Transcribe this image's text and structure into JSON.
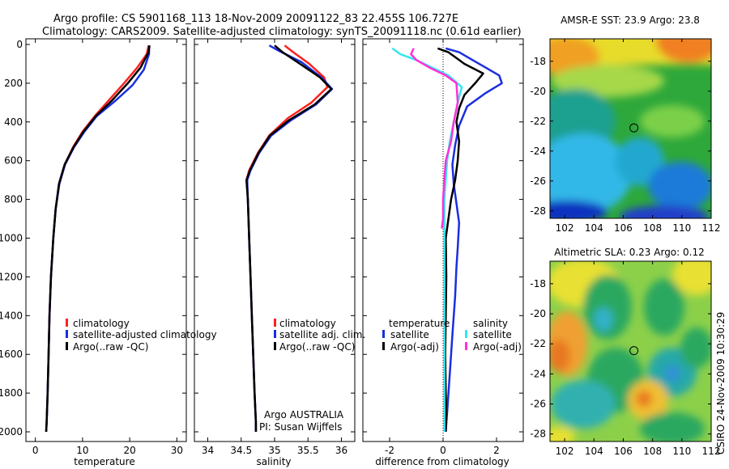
{
  "title": {
    "line1": "Argo profile: CS 5901168_113 18-Nov-2009 20091122_83 22.455S 106.727E",
    "line2": "Climatology: CARS2009. Satellite-adjusted climatology: synTS_20091118.nc (0.61d earlier)"
  },
  "footer_text": "CSIRO 24-Nov-2009 10:30:29",
  "colors": {
    "climatology": "#ff2020",
    "satellite": "#1a2ee0",
    "argo": "#000000",
    "argo_sal": "#ff30d8",
    "satellite_sal": "#30e8f0",
    "marker": "#000000"
  },
  "chart_data": [
    {
      "type": "line",
      "panel": "temperature",
      "xlabel": "temperature",
      "xlim": [
        -2,
        32
      ],
      "xticks": [
        0,
        10,
        20,
        30
      ],
      "ylim": [
        0,
        2050
      ],
      "yticks": [
        0,
        200,
        400,
        600,
        800,
        1000,
        1200,
        1400,
        1600,
        1800,
        2000
      ],
      "y_reversed": true,
      "legend": [
        "climatology",
        "satellite-adjusted climatology",
        "Argo(..raw -QC)"
      ],
      "series": [
        {
          "name": "climatology",
          "color_key": "climatology",
          "x": [
            24.0,
            23.6,
            21.6,
            18.8,
            15.5,
            12.6,
            10.0,
            8.0,
            6.2,
            5.0,
            4.3,
            3.8,
            3.3,
            3.0,
            2.8,
            2.6,
            2.4,
            2.3
          ],
          "y": [
            5,
            50,
            120,
            200,
            290,
            370,
            450,
            530,
            620,
            720,
            850,
            1000,
            1200,
            1400,
            1600,
            1800,
            1950,
            2000
          ]
        },
        {
          "name": "satellite-adjusted climatology",
          "color_key": "satellite",
          "x": [
            24.1,
            24.1,
            23.0,
            20.6,
            17.0,
            13.0,
            10.4,
            8.2,
            6.3,
            5.1,
            4.3,
            3.8,
            3.3,
            3.0,
            2.8,
            2.6,
            2.4,
            2.3
          ],
          "y": [
            5,
            50,
            130,
            210,
            290,
            370,
            450,
            530,
            620,
            720,
            850,
            1000,
            1200,
            1400,
            1600,
            1800,
            1950,
            2000
          ]
        },
        {
          "name": "Argo(..raw -QC)",
          "color_key": "argo",
          "x": [
            24.2,
            24.0,
            22.3,
            19.6,
            16.2,
            12.8,
            10.2,
            8.1,
            6.2,
            5.0,
            4.3,
            3.8,
            3.3,
            3.0,
            2.8,
            2.6,
            2.4,
            2.3
          ],
          "y": [
            5,
            40,
            120,
            200,
            290,
            370,
            450,
            530,
            620,
            720,
            850,
            1000,
            1200,
            1400,
            1600,
            1800,
            1950,
            2000
          ]
        }
      ]
    },
    {
      "type": "line",
      "panel": "salinity",
      "xlabel": "salinity",
      "xlim": [
        33.8,
        36.2
      ],
      "xticks": [
        34,
        34.5,
        35,
        35.5,
        36
      ],
      "ylim": [
        0,
        2050
      ],
      "y_reversed": true,
      "legend": [
        "climatology",
        "satellite adj. clim.",
        "Argo(..raw -QC)"
      ],
      "annotation": [
        "Argo AUSTRALIA",
        "PI: Susan Wijffels"
      ],
      "series": [
        {
          "name": "climatology",
          "color_key": "climatology",
          "x": [
            35.15,
            35.28,
            35.52,
            35.74,
            35.79,
            35.55,
            35.2,
            34.92,
            34.75,
            34.62,
            34.58,
            34.6,
            34.62,
            34.64,
            34.66,
            34.68,
            34.7,
            34.72,
            34.72
          ],
          "y": [
            5,
            40,
            100,
            170,
            220,
            300,
            380,
            470,
            560,
            650,
            700,
            800,
            1000,
            1200,
            1400,
            1600,
            1800,
            1950,
            2000
          ]
        },
        {
          "name": "satellite adj. clim.",
          "color_key": "satellite",
          "x": [
            34.92,
            35.05,
            35.4,
            35.7,
            35.86,
            35.62,
            35.25,
            34.95,
            34.77,
            34.64,
            34.59,
            34.6,
            34.62,
            34.64,
            34.66,
            34.68,
            34.7,
            34.72,
            34.72
          ],
          "y": [
            5,
            30,
            90,
            170,
            230,
            310,
            390,
            470,
            560,
            650,
            700,
            800,
            1000,
            1200,
            1400,
            1600,
            1800,
            1950,
            2000
          ]
        },
        {
          "name": "Argo(..raw -QC)",
          "color_key": "argo",
          "x": [
            35.0,
            35.12,
            35.38,
            35.68,
            35.85,
            35.6,
            35.22,
            34.93,
            34.76,
            34.63,
            34.58,
            34.6,
            34.62,
            34.64,
            34.66,
            34.68,
            34.7,
            34.72,
            34.72
          ],
          "y": [
            5,
            40,
            100,
            170,
            230,
            310,
            390,
            470,
            560,
            650,
            700,
            800,
            1000,
            1200,
            1400,
            1600,
            1800,
            1950,
            2000
          ]
        }
      ]
    },
    {
      "type": "line",
      "panel": "difference",
      "xlabel": "difference from climatology",
      "xlim": [
        -3.0,
        3.0
      ],
      "xticks": [
        -2,
        0,
        2
      ],
      "ylim": [
        0,
        2050
      ],
      "y_reversed": true,
      "legend_temperature_title": "temperature",
      "legend_temperature": [
        "satellite",
        "Argo(-adj)"
      ],
      "legend_salinity_title": "salinity",
      "legend_salinity": [
        "satellite",
        "Argo(-adj)"
      ],
      "series": [
        {
          "name": "temperature satellite",
          "color_key": "satellite",
          "x": [
            0.1,
            0.6,
            1.1,
            1.6,
            2.1,
            2.2,
            1.6,
            0.9,
            0.6,
            0.45,
            0.35,
            0.4,
            0.5,
            0.6,
            0.55,
            0.5,
            0.45,
            0.35,
            0.25,
            0.15,
            0.1
          ],
          "y": [
            20,
            40,
            80,
            120,
            160,
            200,
            250,
            320,
            420,
            520,
            620,
            720,
            820,
            920,
            1050,
            1150,
            1300,
            1500,
            1700,
            1900,
            2000
          ]
        },
        {
          "name": "temperature Argo(-adj)",
          "color_key": "argo",
          "x": [
            -0.2,
            0.2,
            0.5,
            0.8,
            1.5,
            1.2,
            0.8,
            0.6,
            0.5,
            0.6,
            0.55,
            0.45,
            0.3,
            0.2,
            0.1,
            0.12,
            0.1,
            0.08,
            0.1,
            0.12,
            0.1
          ],
          "y": [
            20,
            40,
            70,
            100,
            150,
            200,
            260,
            330,
            400,
            500,
            600,
            700,
            800,
            900,
            1000,
            1200,
            1400,
            1600,
            1800,
            1900,
            2000
          ]
        },
        {
          "name": "salinity satellite",
          "color_key": "satellite_sal",
          "x": [
            -1.9,
            -1.6,
            -1.0,
            -0.4,
            0.2,
            0.7,
            0.55,
            0.4,
            0.25,
            0.15,
            0.1,
            0.05,
            0.05,
            0.05,
            0.05,
            0.05
          ],
          "y": [
            20,
            50,
            80,
            120,
            160,
            220,
            300,
            400,
            500,
            600,
            700,
            800,
            1000,
            1400,
            1800,
            2000
          ]
        },
        {
          "name": "salinity Argo(-adj)",
          "color_key": "argo_sal",
          "x": [
            -1.1,
            -1.2,
            -1.0,
            -0.5,
            0.1,
            0.5,
            0.55,
            0.4,
            0.3,
            0.1,
            0.05,
            0.0,
            0.0,
            -0.05
          ],
          "y": [
            20,
            50,
            80,
            120,
            160,
            200,
            300,
            400,
            500,
            600,
            700,
            800,
            900,
            950
          ]
        }
      ]
    },
    {
      "type": "heatmap",
      "panel": "sst",
      "title": "AMSR-E SST: 23.9 Argo: 23.8",
      "xticks": [
        102,
        104,
        106,
        108,
        110,
        112
      ],
      "yticks": [
        -18,
        -20,
        -22,
        -24,
        -26,
        -28
      ],
      "xlim": [
        101,
        112
      ],
      "ylim": [
        -28.5,
        -16.5
      ],
      "marker": {
        "lon": 106.727,
        "lat": -22.455
      }
    },
    {
      "type": "heatmap",
      "panel": "sla",
      "title": "Altimetric SLA: 0.23 Argo: 0.12",
      "xticks": [
        102,
        104,
        106,
        108,
        110,
        112
      ],
      "yticks": [
        -18,
        -20,
        -22,
        -24,
        -26,
        -28
      ],
      "xlim": [
        101,
        112
      ],
      "ylim": [
        -28.5,
        -16.5
      ],
      "marker": {
        "lon": 106.727,
        "lat": -22.455
      }
    }
  ]
}
